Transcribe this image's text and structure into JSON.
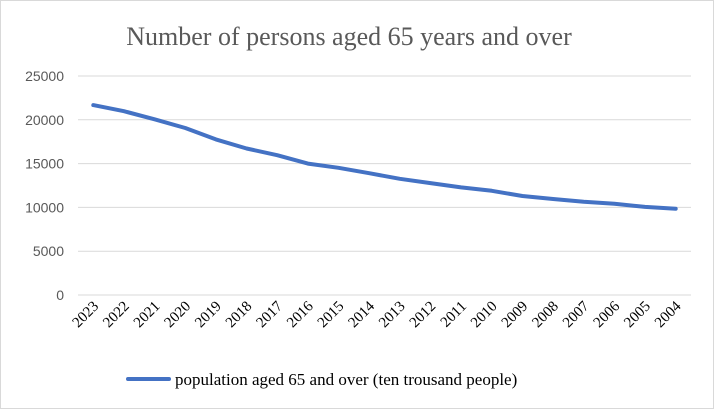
{
  "chart_data": {
    "type": "line",
    "title": "Number of persons aged 65 years and over",
    "xlabel": "",
    "ylabel": "",
    "ylim": [
      0,
      25000
    ],
    "yticks": [
      0,
      5000,
      10000,
      15000,
      20000,
      25000
    ],
    "grid": true,
    "legend_position": "bottom",
    "categories": [
      "2023",
      "2022",
      "2021",
      "2020",
      "2019",
      "2018",
      "2017",
      "2016",
      "2015",
      "2014",
      "2013",
      "2012",
      "2011",
      "2010",
      "2009",
      "2008",
      "2007",
      "2006",
      "2005",
      "2004"
    ],
    "series": [
      {
        "name": "population aged 65 and over (ten trousand people)",
        "color": "#4472c4",
        "values": [
          21676,
          20978,
          20056,
          19064,
          17767,
          16724,
          15961,
          15003,
          14524,
          13902,
          13262,
          12777,
          12288,
          11894,
          11307,
          10956,
          10636,
          10419,
          10055,
          9857
        ]
      }
    ]
  }
}
